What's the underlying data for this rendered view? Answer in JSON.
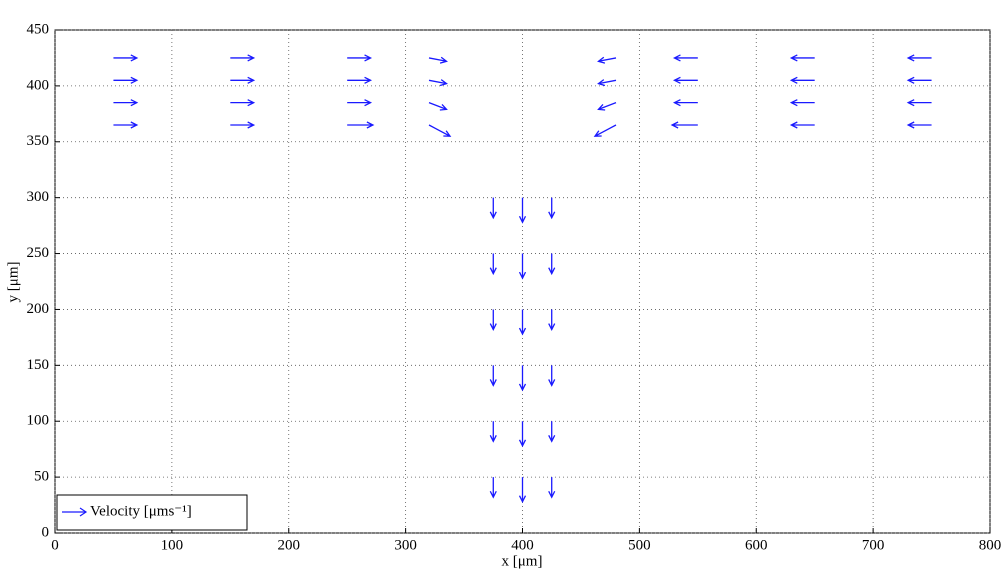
{
  "chart_data": {
    "type": "quiver",
    "xlabel": "x [μm]",
    "ylabel": "y [μm]",
    "xlim": [
      0,
      800
    ],
    "ylim": [
      0,
      450
    ],
    "xticks": [
      0,
      100,
      200,
      300,
      400,
      500,
      600,
      700,
      800
    ],
    "yticks": [
      0,
      50,
      100,
      150,
      200,
      250,
      300,
      350,
      400,
      450
    ],
    "grid": true,
    "legend": "lower left",
    "series": [
      {
        "name": "Velocity [μms⁻¹]",
        "color": "#1a1aff",
        "x": [
          50,
          150,
          250,
          320,
          480,
          550,
          650,
          750,
          50,
          150,
          250,
          320,
          480,
          550,
          650,
          750,
          50,
          150,
          250,
          320,
          480,
          550,
          650,
          750,
          50,
          150,
          250,
          320,
          480,
          550,
          650,
          750,
          375,
          400,
          425,
          375,
          400,
          425,
          375,
          400,
          425,
          375,
          400,
          425,
          375,
          400,
          425,
          375,
          400,
          425
        ],
        "y": [
          425,
          425,
          425,
          425,
          425,
          425,
          425,
          425,
          405,
          405,
          405,
          405,
          405,
          405,
          405,
          405,
          385,
          385,
          385,
          385,
          385,
          385,
          385,
          385,
          365,
          365,
          365,
          365,
          365,
          365,
          365,
          365,
          300,
          300,
          300,
          250,
          250,
          250,
          200,
          200,
          200,
          150,
          150,
          150,
          100,
          100,
          100,
          50,
          50,
          50
        ],
        "u": [
          20,
          20,
          20,
          15,
          -15,
          -20,
          -20,
          -20,
          20,
          20,
          20,
          15,
          -15,
          -20,
          -20,
          -20,
          20,
          20,
          20,
          15,
          -15,
          -20,
          -20,
          -20,
          20,
          20,
          22,
          18,
          -18,
          -22,
          -20,
          -20,
          0,
          0,
          0,
          0,
          0,
          0,
          0,
          0,
          0,
          0,
          0,
          0,
          0,
          0,
          0,
          0,
          0,
          0
        ],
        "v": [
          0,
          0,
          0,
          -3,
          -3,
          0,
          0,
          0,
          0,
          0,
          0,
          -3,
          -3,
          0,
          0,
          0,
          0,
          0,
          0,
          -6,
          -6,
          0,
          0,
          0,
          0,
          0,
          0,
          -10,
          -10,
          0,
          0,
          0,
          -18,
          -22,
          -18,
          -18,
          -22,
          -18,
          -18,
          -22,
          -18,
          -18,
          -22,
          -18,
          -18,
          -22,
          -18,
          -18,
          -22,
          -18
        ]
      }
    ]
  }
}
